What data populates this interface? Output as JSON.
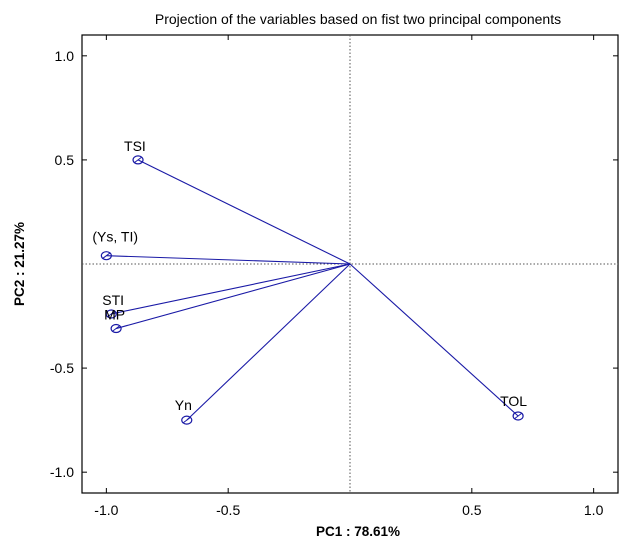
{
  "chart_data": {
    "type": "scatter",
    "title": "Projection of the variables based on fist two principal components",
    "xlabel": "PC1 : 78.61%",
    "ylabel": "PC2 : 21.27%",
    "xlim": [
      -1.1,
      1.1
    ],
    "ylim": [
      -1.1,
      1.1
    ],
    "xticks": [
      {
        "value": -1.0,
        "label": "-1.0"
      },
      {
        "value": -0.5,
        "label": "-0.5"
      },
      {
        "value": 0.5,
        "label": "0.5"
      },
      {
        "value": 1.0,
        "label": "1.0"
      }
    ],
    "yticks": [
      {
        "value": 1.0,
        "label": "1.0"
      },
      {
        "value": 0.5,
        "label": "0.5"
      },
      {
        "value": -0.5,
        "label": "-0.5"
      },
      {
        "value": -1.0,
        "label": "-1.0"
      }
    ],
    "points": [
      {
        "label": "TSI",
        "x": -0.87,
        "y": 0.5
      },
      {
        "label": "(Ys, TI)",
        "x": -1.0,
        "y": 0.04
      },
      {
        "label": "STI",
        "x": -0.98,
        "y": -0.24
      },
      {
        "label": "MP",
        "x": -0.96,
        "y": -0.31
      },
      {
        "label": "Yn",
        "x": -0.67,
        "y": -0.75
      },
      {
        "label": "TOL",
        "x": 0.69,
        "y": -0.73
      }
    ],
    "vectors_from_origin": true,
    "reference_lines": {
      "x": 0,
      "y": 0,
      "style": "dotted"
    },
    "colors": {
      "vector": "#1a1aa6",
      "marker": "#1a1aa6",
      "axis": "#000000",
      "reference": "#555555"
    }
  }
}
